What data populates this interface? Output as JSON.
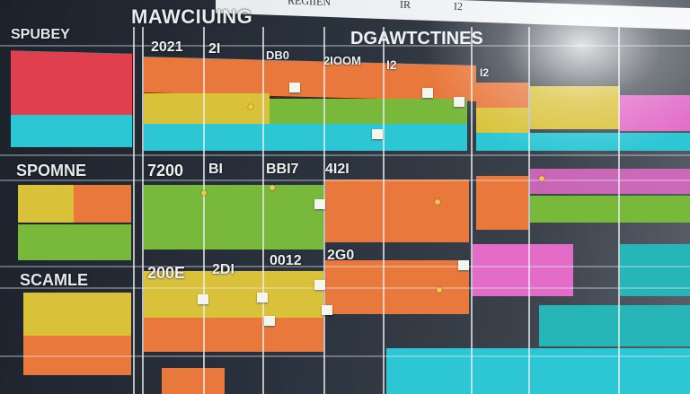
{
  "board": {
    "title": "MAWCIUING",
    "header_right": "DGAWTCTINES",
    "top_strip": [
      "REGIIEN",
      "IR",
      "I2"
    ],
    "left_labels": [
      "SPUBEY",
      "SPOMNE",
      "SCAMLE"
    ],
    "column_labels_row1": [
      "2021",
      "2I",
      "DB0",
      "2IOOM",
      "I2",
      "I2"
    ],
    "column_labels_row2": [
      "7200",
      "BI",
      "BBI7",
      "4I2I"
    ],
    "column_labels_row3": [
      "200E",
      "2DI",
      "0012",
      "2G0"
    ],
    "colors": {
      "red": "#e0404e",
      "orange": "#e8783c",
      "yellow": "#d9c23a",
      "green": "#78b83a",
      "cyan": "#2cc6d4",
      "pink": "#e26cc8",
      "teal": "#27b6b8"
    }
  }
}
